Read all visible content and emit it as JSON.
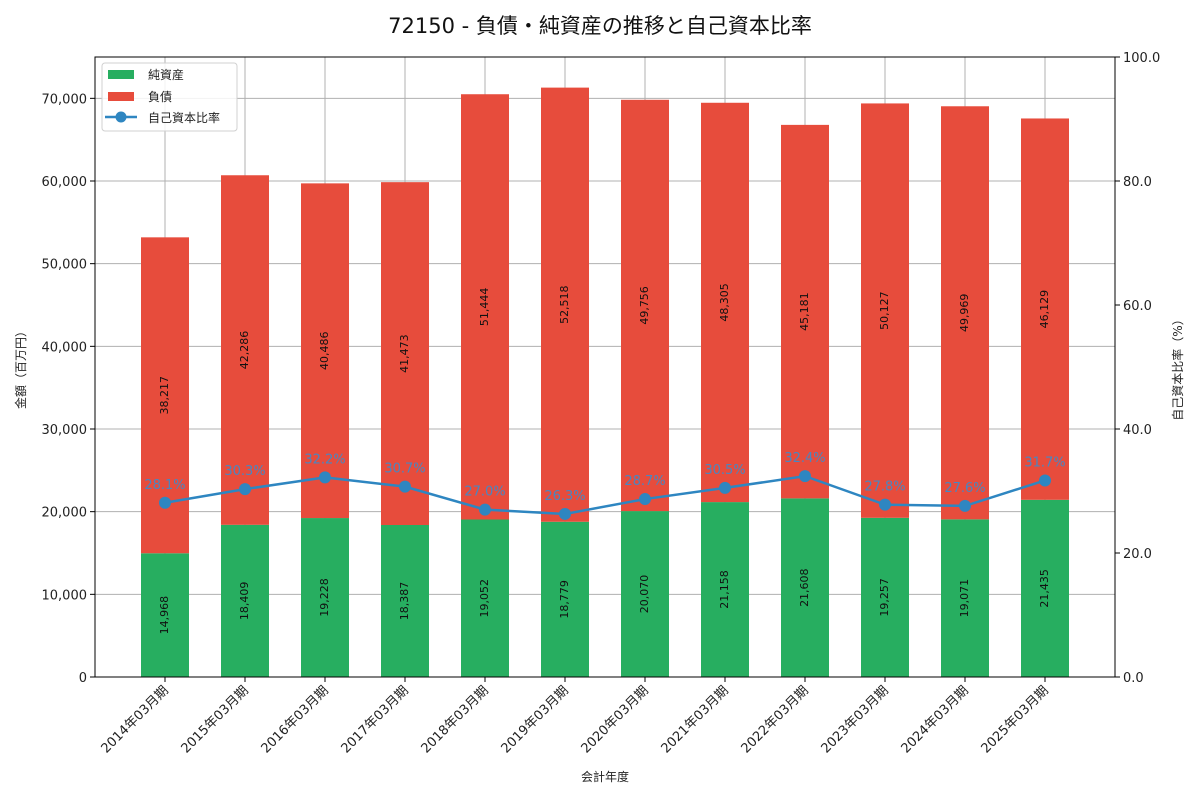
{
  "chart_data": {
    "type": "bar",
    "title": "72150 - 負債・純資産の推移と自己資本比率",
    "xlabel": "会計年度",
    "ylabel": "金額（百万円）",
    "y2label": "自己資本比率（%）",
    "ylim": [
      0,
      75000
    ],
    "y2lim": [
      0,
      100
    ],
    "grid": true,
    "legend_position": "upper left",
    "stacked": true,
    "categories": [
      "2014年03月期",
      "2015年03月期",
      "2016年03月期",
      "2017年03月期",
      "2018年03月期",
      "2019年03月期",
      "2020年03月期",
      "2021年03月期",
      "2022年03月期",
      "2023年03月期",
      "2024年03月期",
      "2025年03月期"
    ],
    "series": [
      {
        "name": "純資産",
        "type": "bar",
        "axis": "left",
        "color": "#27ae60",
        "values": [
          14968,
          18409,
          19228,
          18387,
          19052,
          18779,
          20070,
          21158,
          21608,
          19257,
          19071,
          21435
        ]
      },
      {
        "name": "負債",
        "type": "bar",
        "axis": "left",
        "color": "#e74c3c",
        "values": [
          38217,
          42286,
          40486,
          41473,
          51444,
          52518,
          49756,
          48305,
          45181,
          50127,
          49969,
          46129
        ]
      },
      {
        "name": "自己資本比率",
        "type": "line",
        "axis": "right",
        "color": "#2e86c1",
        "marker": "circle",
        "values": [
          28.1,
          30.3,
          32.2,
          30.7,
          27.0,
          26.3,
          28.7,
          30.5,
          32.4,
          27.8,
          27.6,
          31.7
        ]
      }
    ],
    "yticks": [
      "0",
      "10,000",
      "20,000",
      "30,000",
      "40,000",
      "50,000",
      "60,000",
      "70,000"
    ],
    "y2ticks": [
      "0.0",
      "20.0",
      "40.0",
      "60.0",
      "80.0",
      "100.0"
    ]
  }
}
